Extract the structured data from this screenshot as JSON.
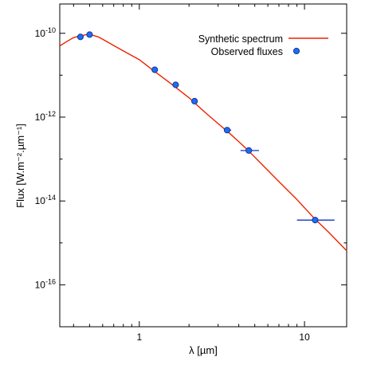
{
  "chart_data": {
    "type": "scatter",
    "xlabel": "λ [µm]",
    "ylabel": "Flux [W.m⁻².µm⁻¹]",
    "x_scale": "log",
    "y_scale": "log",
    "xlim": [
      0.33,
      18
    ],
    "ylim": [
      1e-17,
      5e-10
    ],
    "x_ticks": [
      {
        "value": 1,
        "label": "1"
      },
      {
        "value": 10,
        "label": "10"
      }
    ],
    "y_ticks": [
      {
        "exponent": -10,
        "label_base": "10",
        "label_exp": "-10"
      },
      {
        "exponent": -12,
        "label_base": "10",
        "label_exp": "-12"
      },
      {
        "exponent": -14,
        "label_base": "10",
        "label_exp": "-14"
      },
      {
        "exponent": -16,
        "label_base": "10",
        "label_exp": "-16"
      }
    ],
    "legend": {
      "position": "top-right",
      "entries": [
        "Synthetic spectrum",
        "Observed fluxes"
      ]
    },
    "colors": {
      "model": "#ee2200",
      "points": "#1e6cf5",
      "point_edge": "#0a2f8a",
      "errorbar": "#1233c8"
    },
    "series": [
      {
        "name": "Synthetic spectrum",
        "kind": "line",
        "x": [
          0.33,
          0.36,
          0.4,
          0.44,
          0.48,
          0.52,
          0.56,
          0.6,
          0.7,
          0.8,
          1.0,
          1.2,
          1.5,
          2.0,
          2.5,
          3.0,
          3.5,
          4.0,
          4.6,
          5.5,
          7.0,
          9.0,
          11.5,
          14.0,
          18.0
        ],
        "y": [
          5e-11,
          6.2e-11,
          7.9e-11,
          8.7e-11,
          9.3e-11,
          9e-11,
          8.3e-11,
          7.2e-11,
          5.1e-11,
          3.8e-11,
          2.35e-11,
          1.35e-11,
          7e-12,
          2.9e-12,
          1.3e-12,
          7e-13,
          4.2e-13,
          2.6e-13,
          1.55e-13,
          7.6e-14,
          2.9e-14,
          1.08e-14,
          3.8e-15,
          1.8e-15,
          6.5e-16
        ]
      },
      {
        "name": "Observed fluxes",
        "kind": "scatter",
        "points": [
          {
            "x": 0.44,
            "y": 8.2e-11
          },
          {
            "x": 0.5,
            "y": 9.3e-11
          },
          {
            "x": 1.24,
            "y": 1.35e-11
          },
          {
            "x": 1.66,
            "y": 5.9e-12
          },
          {
            "x": 2.16,
            "y": 2.4e-12
          },
          {
            "x": 3.4,
            "y": 4.9e-13,
            "xerr": [
              3.25,
              3.6
            ]
          },
          {
            "x": 4.6,
            "y": 1.6e-13,
            "xerr": [
              4.1,
              5.3
            ]
          },
          {
            "x": 11.6,
            "y": 3.5e-15,
            "xerr": [
              9.0,
              15.2
            ]
          }
        ]
      }
    ]
  }
}
